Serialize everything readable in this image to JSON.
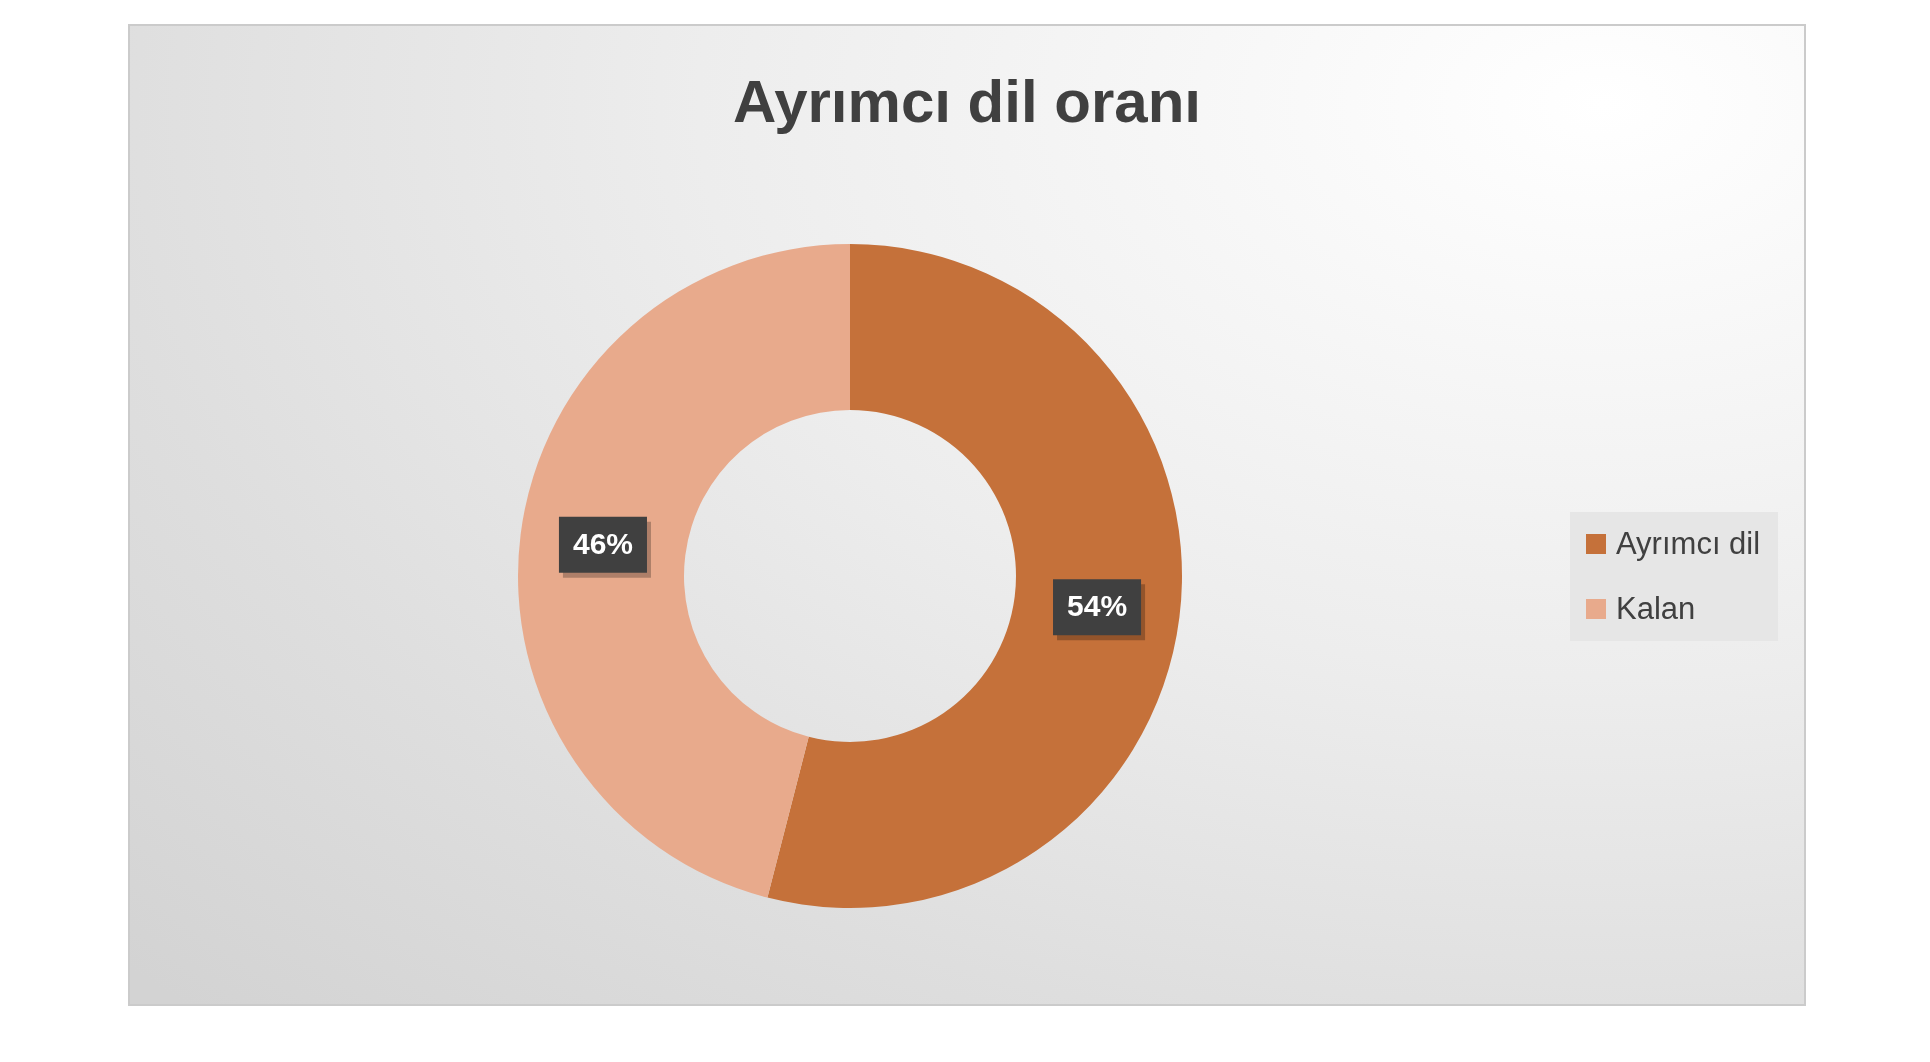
{
  "chart_data": {
    "type": "donut",
    "title": "Ayrımcı dil oranı",
    "categories": [
      "Ayrımcı dil",
      "Kalan"
    ],
    "values": [
      54,
      46
    ],
    "colors": [
      "#c5713a",
      "#e8aa8c"
    ],
    "value_labels": [
      "54%",
      "46%"
    ],
    "legend": "right"
  }
}
